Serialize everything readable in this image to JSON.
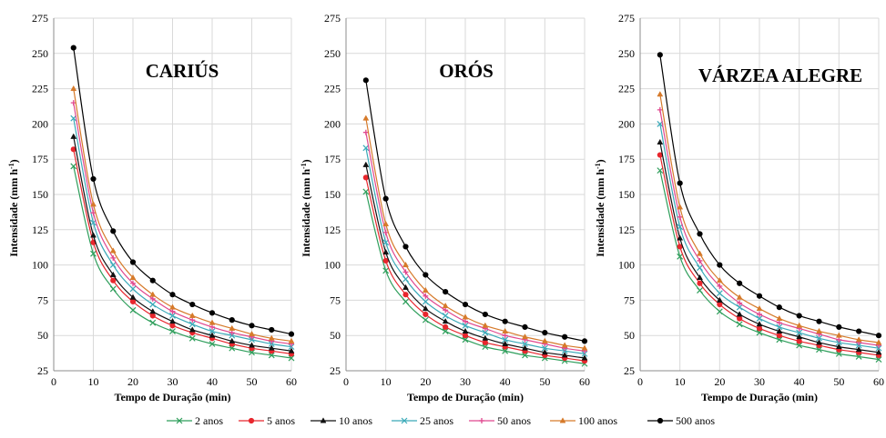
{
  "chart_data": {
    "type": "line",
    "xlabel": "Tempo de Duração (min)",
    "ylabel": "Intensidade (mm h",
    "ylabel_sup": "-1",
    "ylabel_close": ")",
    "xlim": [
      0,
      60
    ],
    "ylim": [
      25,
      275
    ],
    "xticks": [
      0,
      10,
      20,
      30,
      40,
      50,
      60
    ],
    "yticks": [
      25,
      50,
      75,
      100,
      125,
      150,
      175,
      200,
      225,
      250,
      275
    ],
    "x": [
      5,
      10,
      15,
      20,
      25,
      30,
      35,
      40,
      45,
      50,
      55,
      60
    ],
    "grid": true,
    "legend_position": "bottom",
    "legend": [
      {
        "name": "2 anos",
        "color": "#2e9e5b",
        "marker": "x-cross"
      },
      {
        "name": "5 anos",
        "color": "#e8262d",
        "marker": "circle"
      },
      {
        "name": "10 anos",
        "color": "#111111",
        "marker": "triangle"
      },
      {
        "name": "25 anos",
        "color": "#3aa9b8",
        "marker": "x-cross"
      },
      {
        "name": "50 anos",
        "color": "#e0478f",
        "marker": "plus"
      },
      {
        "name": "100 anos",
        "color": "#d67a2a",
        "marker": "triangle"
      },
      {
        "name": "500 anos",
        "color": "#000000",
        "marker": "circle"
      }
    ],
    "panels": [
      {
        "title": "CARIÚS",
        "series": [
          {
            "values": [
              170,
              108,
              83,
              68,
              59,
              53,
              48,
              44,
              41,
              38,
              36,
              34
            ]
          },
          {
            "values": [
              182,
              116,
              89,
              74,
              64,
              57,
              52,
              48,
              44,
              41,
              39,
              37
            ]
          },
          {
            "values": [
              191,
              121,
              93,
              77,
              67,
              60,
              54,
              50,
              46,
              43,
              41,
              39
            ]
          },
          {
            "values": [
              204,
              130,
              100,
              83,
              72,
              64,
              58,
              53,
              50,
              47,
              44,
              42
            ]
          },
          {
            "values": [
              215,
              137,
              105,
              87,
              76,
              67,
              61,
              56,
              52,
              49,
              46,
              44
            ]
          },
          {
            "values": [
              225,
              143,
              110,
              91,
              79,
              70,
              64,
              59,
              55,
              51,
              48,
              46
            ]
          },
          {
            "values": [
              254,
              161,
              124,
              102,
              89,
              79,
              72,
              66,
              61,
              57,
              54,
              51
            ]
          }
        ]
      },
      {
        "title": "ORÓS",
        "series": [
          {
            "values": [
              152,
              96,
              74,
              61,
              53,
              47,
              42,
              39,
              36,
              34,
              32,
              30
            ]
          },
          {
            "values": [
              162,
              103,
              79,
              65,
              56,
              50,
              45,
              42,
              39,
              36,
              34,
              32
            ]
          },
          {
            "values": [
              171,
              109,
              84,
              69,
              60,
              53,
              48,
              44,
              41,
              38,
              36,
              34
            ]
          },
          {
            "values": [
              183,
              116,
              90,
              74,
              64,
              57,
              52,
              47,
              44,
              41,
              39,
              37
            ]
          },
          {
            "values": [
              194,
              123,
              95,
              78,
              68,
              60,
              55,
              50,
              47,
              44,
              41,
              39
            ]
          },
          {
            "values": [
              204,
              129,
              100,
              82,
              71,
              63,
              57,
              53,
              49,
              46,
              43,
              41
            ]
          },
          {
            "values": [
              231,
              147,
              113,
              93,
              81,
              72,
              65,
              60,
              56,
              52,
              49,
              46
            ]
          }
        ]
      },
      {
        "title": "VÁRZEA ALEGRE",
        "series": [
          {
            "values": [
              167,
              106,
              82,
              67,
              58,
              52,
              47,
              43,
              40,
              37,
              35,
              33
            ]
          },
          {
            "values": [
              178,
              113,
              87,
              72,
              62,
              55,
              50,
              46,
              43,
              40,
              38,
              36
            ]
          },
          {
            "values": [
              187,
              119,
              91,
              75,
              65,
              58,
              53,
              49,
              45,
              42,
              40,
              38
            ]
          },
          {
            "values": [
              200,
              127,
              98,
              80,
              70,
              62,
              56,
              52,
              48,
              45,
              43,
              41
            ]
          },
          {
            "values": [
              210,
              134,
              103,
              85,
              73,
              65,
              59,
              55,
              51,
              47,
              45,
              43
            ]
          },
          {
            "values": [
              221,
              141,
              108,
              89,
              77,
              69,
              62,
              57,
              53,
              50,
              47,
              45
            ]
          },
          {
            "values": [
              249,
              158,
              122,
              100,
              87,
              78,
              70,
              64,
              60,
              56,
              53,
              50
            ]
          }
        ]
      }
    ]
  }
}
